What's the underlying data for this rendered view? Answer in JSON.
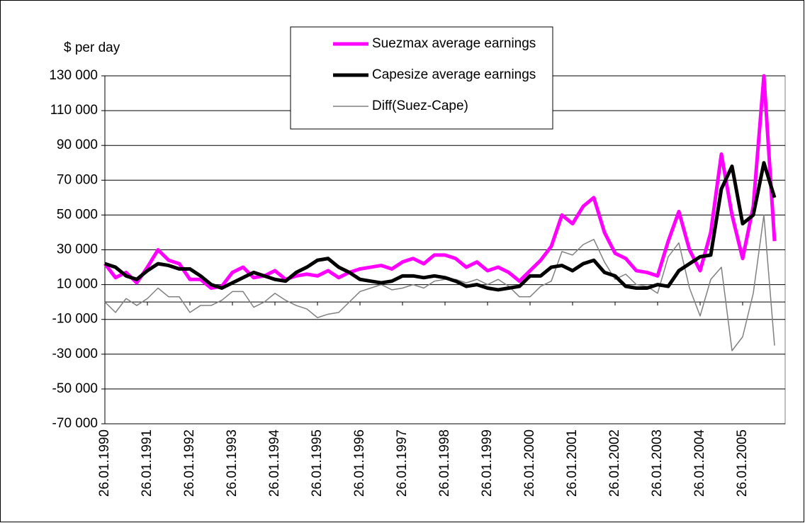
{
  "chart_data": {
    "type": "line",
    "y_label": "$ per day",
    "categories": [
      "26.01.1990",
      null,
      null,
      null,
      "26.01.1991",
      null,
      null,
      null,
      "26.01.1992",
      null,
      null,
      null,
      "26.01.1993",
      null,
      null,
      null,
      "26.01.1994",
      null,
      null,
      null,
      "26.01.1995",
      null,
      null,
      null,
      "26.01.1996",
      null,
      null,
      null,
      "26.01.1997",
      null,
      null,
      null,
      "26.01.1998",
      null,
      null,
      null,
      "26.01.1999",
      null,
      null,
      null,
      "26.01.2000",
      null,
      null,
      null,
      "26.01.2001",
      null,
      null,
      null,
      "26.01.2002",
      null,
      null,
      null,
      "26.01.2003",
      null,
      null,
      null,
      "26.01.2004",
      null,
      null,
      null,
      "26.01.2005",
      null,
      null,
      null
    ],
    "series": [
      {
        "name": "Suezmax average earnings",
        "color": "#ff00ff",
        "width": 5,
        "values": [
          22000,
          14000,
          17000,
          11000,
          20000,
          30000,
          24000,
          22000,
          13000,
          13000,
          8000,
          9000,
          17000,
          20000,
          14000,
          15000,
          18000,
          13000,
          15000,
          16000,
          15000,
          18000,
          14000,
          17000,
          19000,
          20000,
          21000,
          19000,
          23000,
          25000,
          22000,
          27000,
          27000,
          25000,
          20000,
          23000,
          18000,
          20000,
          17000,
          12000,
          18000,
          24000,
          32000,
          50000,
          45000,
          55000,
          60000,
          40000,
          28000,
          25000,
          18000,
          17000,
          15000,
          35000,
          52000,
          30000,
          18000,
          40000,
          85000,
          50000,
          25000,
          55000,
          130000,
          35000
        ]
      },
      {
        "name": "Capesize average earnings",
        "color": "#000000",
        "width": 5,
        "values": [
          22000,
          20000,
          15000,
          13000,
          18000,
          22000,
          21000,
          19000,
          19000,
          15000,
          10000,
          8000,
          11000,
          14000,
          17000,
          15000,
          13000,
          12000,
          17000,
          20000,
          24000,
          25000,
          20000,
          17000,
          13000,
          12000,
          11000,
          12000,
          15000,
          15000,
          14000,
          15000,
          14000,
          12000,
          9000,
          10000,
          8000,
          7000,
          8000,
          9000,
          15000,
          15000,
          20000,
          21000,
          18000,
          22000,
          24000,
          17000,
          15000,
          9000,
          8000,
          8000,
          10000,
          9000,
          18000,
          22000,
          26000,
          27000,
          65000,
          78000,
          45000,
          50000,
          80000,
          60000
        ]
      },
      {
        "name": "Diff(Suez-Cape)",
        "color": "#808080",
        "width": 1.5,
        "values": [
          0,
          -6000,
          2000,
          -2000,
          2000,
          8000,
          3000,
          3000,
          -6000,
          -2000,
          -2000,
          1000,
          6000,
          6000,
          -3000,
          0,
          5000,
          1000,
          -2000,
          -4000,
          -9000,
          -7000,
          -6000,
          0,
          6000,
          8000,
          10000,
          7000,
          8000,
          10000,
          8000,
          12000,
          13000,
          13000,
          11000,
          13000,
          10000,
          13000,
          9000,
          3000,
          3000,
          9000,
          12000,
          29000,
          27000,
          33000,
          36000,
          23000,
          13000,
          16000,
          10000,
          9000,
          5000,
          26000,
          34000,
          8000,
          -8000,
          13000,
          20000,
          -28000,
          -20000,
          5000,
          50000,
          -25000
        ]
      }
    ],
    "ylim": [
      -70000,
      130000
    ],
    "yticks": [
      {
        "value": -70000,
        "label": "-70 000"
      },
      {
        "value": -50000,
        "label": "-50 000"
      },
      {
        "value": -30000,
        "label": "-30 000"
      },
      {
        "value": -10000,
        "label": "-10 000"
      },
      {
        "value": 10000,
        "label": "10 000"
      },
      {
        "value": 30000,
        "label": "30 000"
      },
      {
        "value": 50000,
        "label": "50 000"
      },
      {
        "value": 70000,
        "label": "70 000"
      },
      {
        "value": 90000,
        "label": "90 000"
      },
      {
        "value": 110000,
        "label": "110 000"
      },
      {
        "value": 130000,
        "label": "130 000"
      }
    ],
    "grid": true
  }
}
